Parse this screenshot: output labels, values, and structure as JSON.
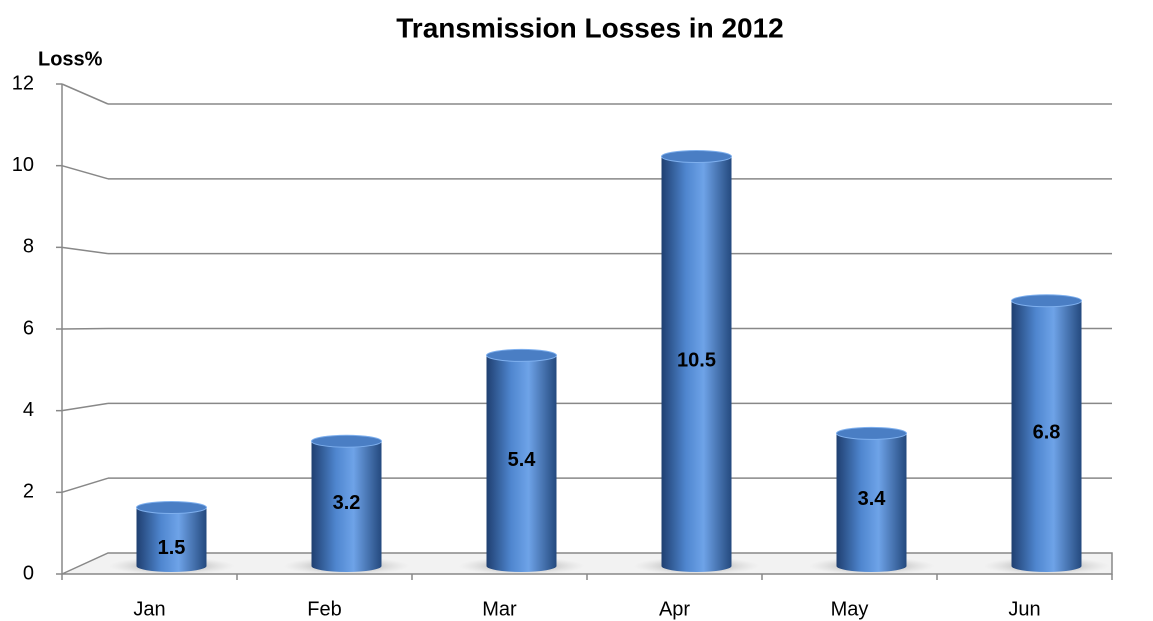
{
  "chart_data": {
    "type": "bar",
    "title": "Transmission Losses in 2012",
    "y_label": "Loss%",
    "categories": [
      "Jan",
      "Feb",
      "Mar",
      "Apr",
      "May",
      "Jun"
    ],
    "values": [
      1.5,
      3.2,
      5.4,
      10.5,
      3.4,
      6.8
    ],
    "color": "#4a7ec4",
    "ylim": [
      0,
      12
    ],
    "yticks": [
      0,
      2,
      4,
      6,
      8,
      10,
      12
    ],
    "grid": true
  }
}
